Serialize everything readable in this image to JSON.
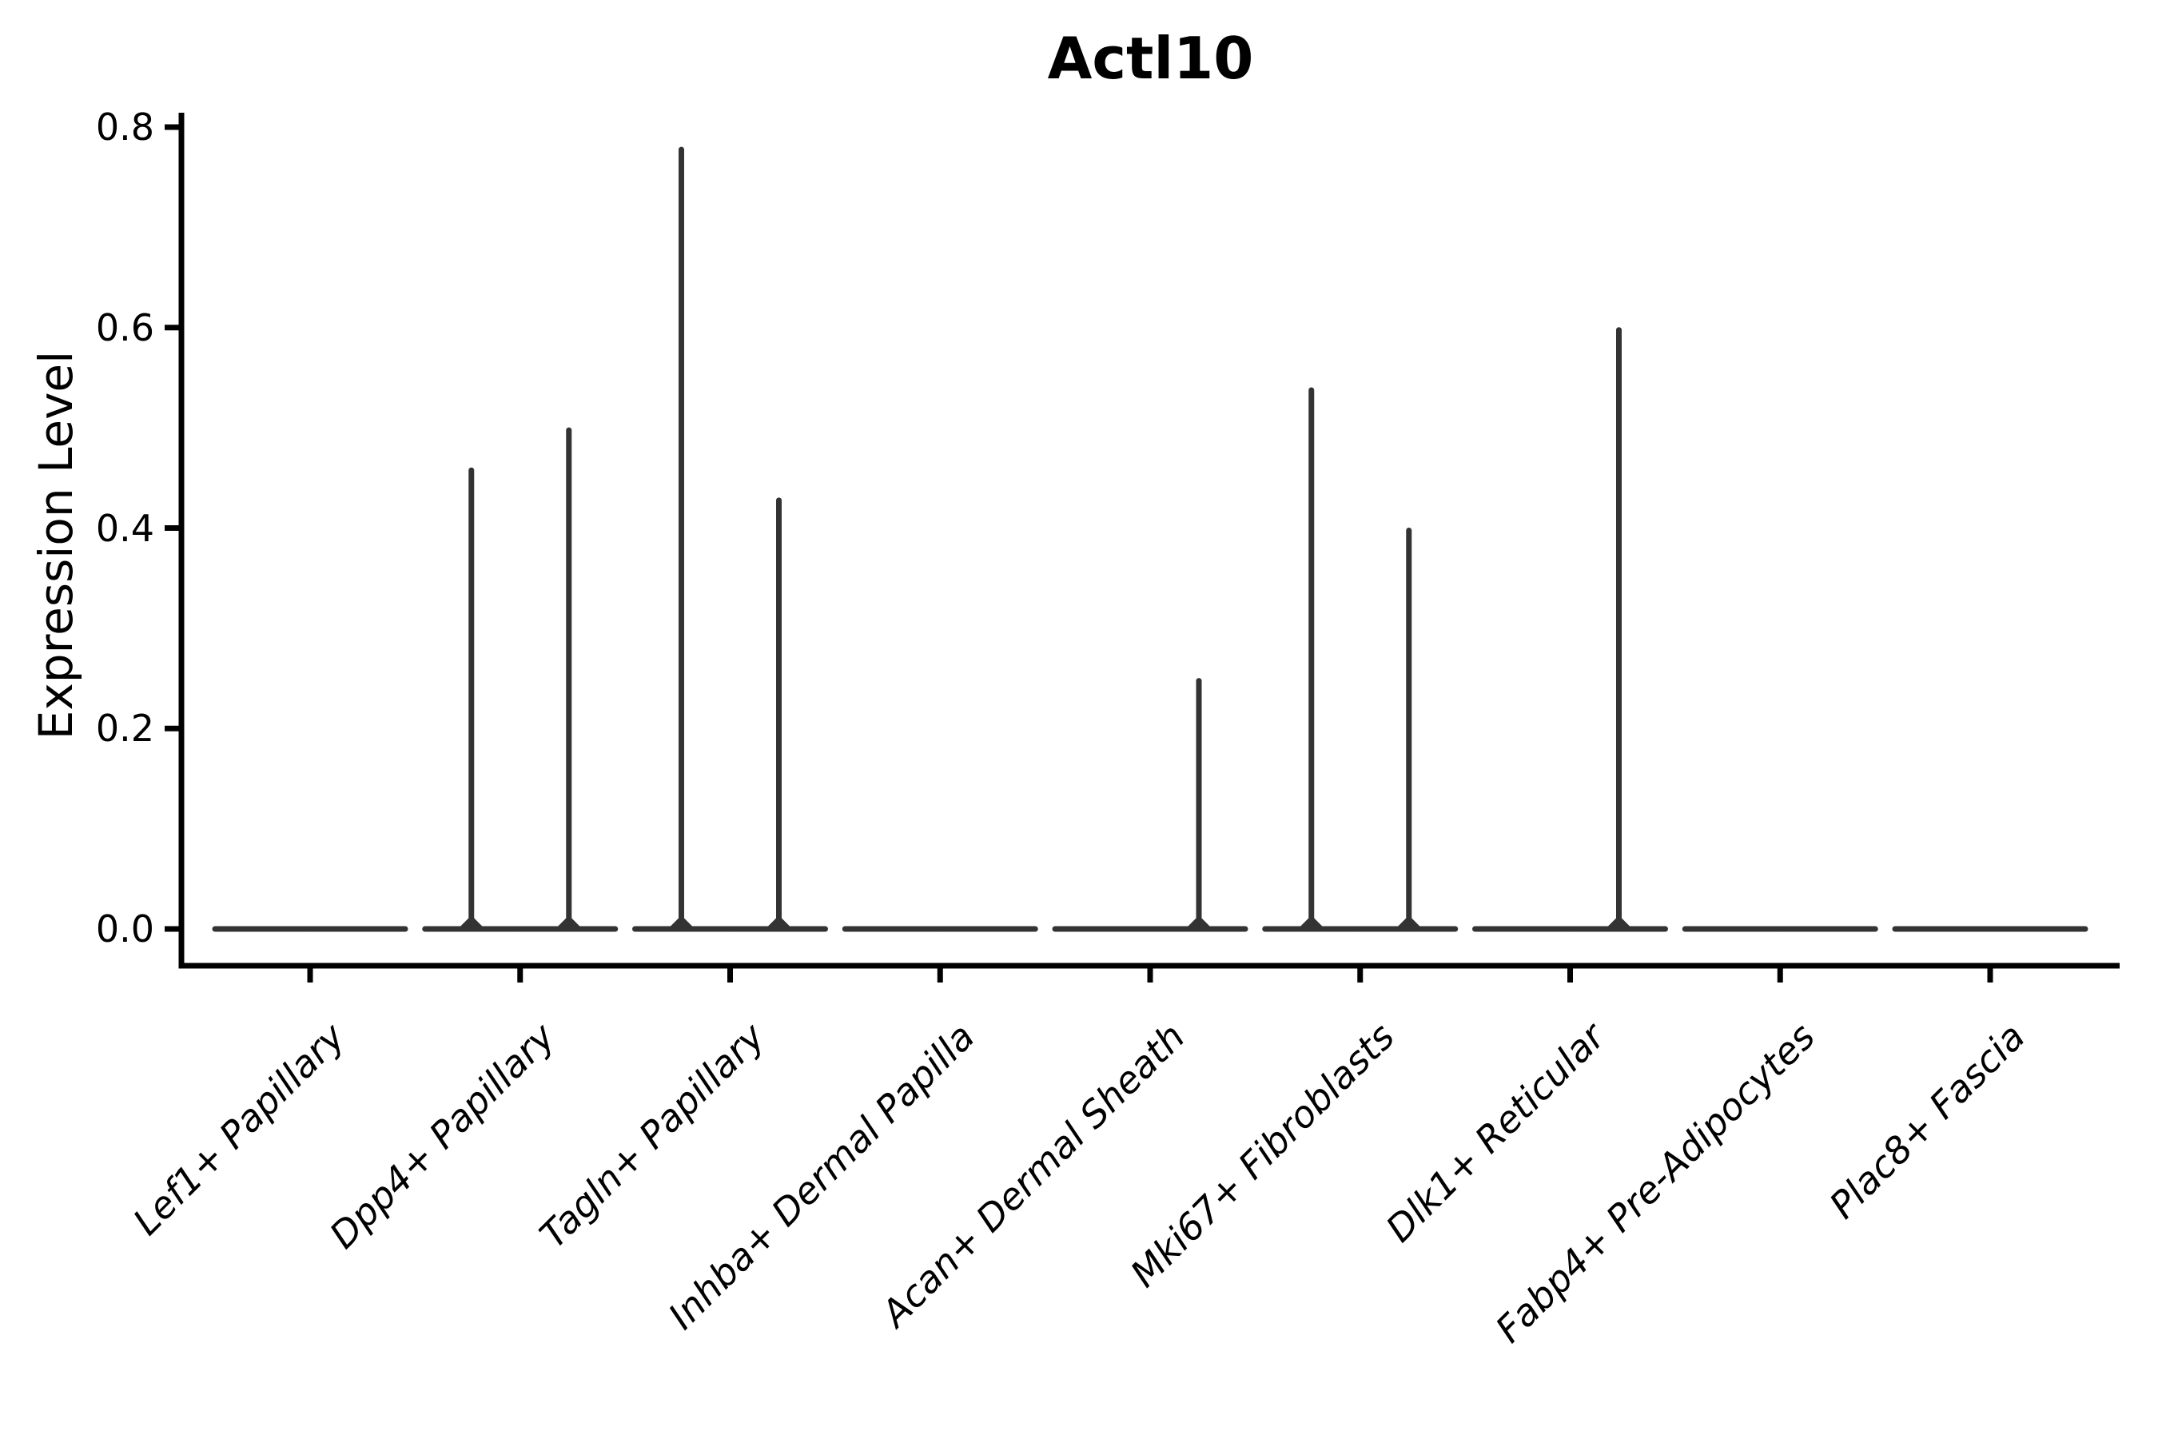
{
  "chart_data": {
    "type": "violin",
    "title": "Actl10",
    "xlabel": "",
    "ylabel": "Expression Level",
    "yticks": [
      "0.0",
      "0.2",
      "0.4",
      "0.6",
      "0.8"
    ],
    "ytick_values": [
      0.0,
      0.2,
      0.4,
      0.6,
      0.8
    ],
    "ylim": [
      -0.037,
      0.815
    ],
    "grid": "off",
    "legend": "none",
    "categories": [
      "Lef1+ Papillary",
      "Dpp4+ Papillary",
      "Tagln+ Papillary",
      "Inhba+ Dermal Papilla",
      "Acan+ Dermal Sheath",
      "Mki67+ Fibroblasts",
      "Dlk1+ Reticular",
      "Fabp4+ Pre-Adipocytes",
      "Plac8+ Fascia"
    ],
    "series": [
      {
        "name": "left-violin",
        "description": "maximum expression reached by the thin violin spike; 0 means flat line at baseline",
        "max_values": [
          0,
          0.46,
          0.78,
          0,
          0,
          0.54,
          0,
          0,
          0
        ]
      },
      {
        "name": "right-violin",
        "description": "maximum expression reached by the thin violin spike; 0 means flat line at baseline",
        "max_values": [
          0,
          0.5,
          0.43,
          0,
          0.25,
          0.4,
          0.6,
          0,
          0
        ]
      }
    ],
    "baseline_value": 0.0,
    "violin_color": "#333333",
    "axis_color": "#000000",
    "background_color": "#ffffff"
  }
}
